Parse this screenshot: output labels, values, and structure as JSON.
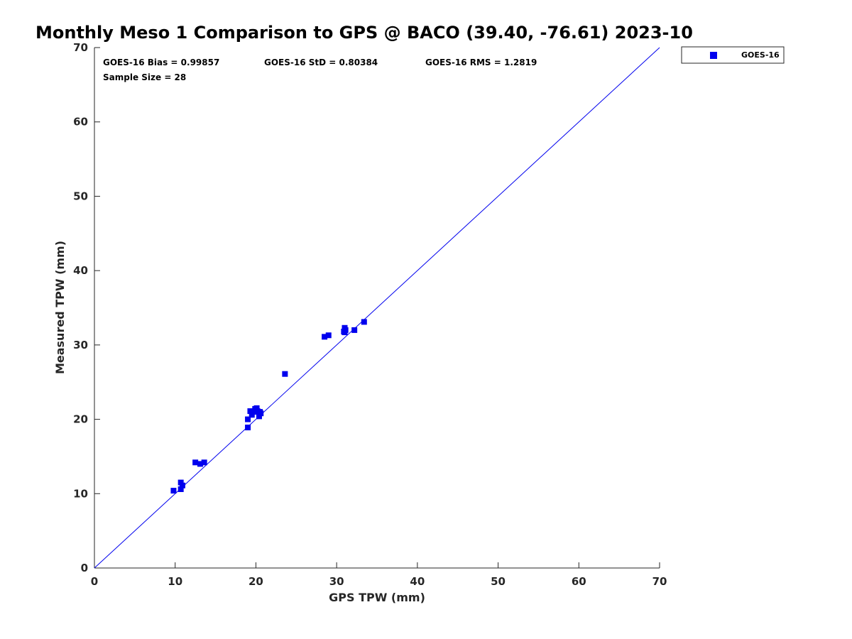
{
  "chart_data": {
    "type": "scatter",
    "title": "Monthly Meso 1 Comparison to GPS @ BACO (39.40, -76.61) 2023-10",
    "xlabel": "GPS TPW (mm)",
    "ylabel": "Measured TPW (mm)",
    "xlim": [
      0,
      70
    ],
    "ylim": [
      0,
      70
    ],
    "xticks": [
      "0",
      "10",
      "20",
      "30",
      "40",
      "50",
      "60",
      "70"
    ],
    "yticks": [
      "0",
      "10",
      "20",
      "30",
      "40",
      "50",
      "60",
      "70"
    ],
    "grid": false,
    "legend_position": "top-right-outside",
    "stats": {
      "bias": "GOES-16 Bias = 0.99857",
      "std": "GOES-16 StD = 0.80384",
      "rms": "GOES-16 RMS = 1.2819",
      "sample": "Sample Size = 28"
    },
    "reference_line": {
      "from": [
        0,
        0
      ],
      "to": [
        70,
        70
      ]
    },
    "series": [
      {
        "name": "GOES-16",
        "color": "#0000ee",
        "marker": "square",
        "points": [
          [
            9.8,
            10.4
          ],
          [
            10.7,
            10.6
          ],
          [
            10.7,
            11.5
          ],
          [
            10.9,
            11.1
          ],
          [
            12.5,
            14.2
          ],
          [
            13.1,
            14.0
          ],
          [
            13.6,
            14.2
          ],
          [
            19.0,
            18.9
          ],
          [
            19.0,
            20.0
          ],
          [
            19.3,
            21.1
          ],
          [
            19.5,
            20.6
          ],
          [
            19.7,
            21.0
          ],
          [
            19.9,
            21.4
          ],
          [
            20.1,
            21.5
          ],
          [
            20.2,
            21.1
          ],
          [
            20.4,
            20.4
          ],
          [
            20.5,
            21.0
          ],
          [
            20.6,
            20.8
          ],
          [
            23.6,
            26.1
          ],
          [
            28.5,
            31.1
          ],
          [
            29.0,
            31.3
          ],
          [
            30.9,
            31.8
          ],
          [
            31.0,
            32.3
          ],
          [
            31.1,
            32.0
          ],
          [
            31.0,
            31.7
          ],
          [
            32.2,
            32.0
          ],
          [
            33.4,
            33.1
          ],
          [
            20.0,
            21.2
          ]
        ]
      }
    ]
  }
}
